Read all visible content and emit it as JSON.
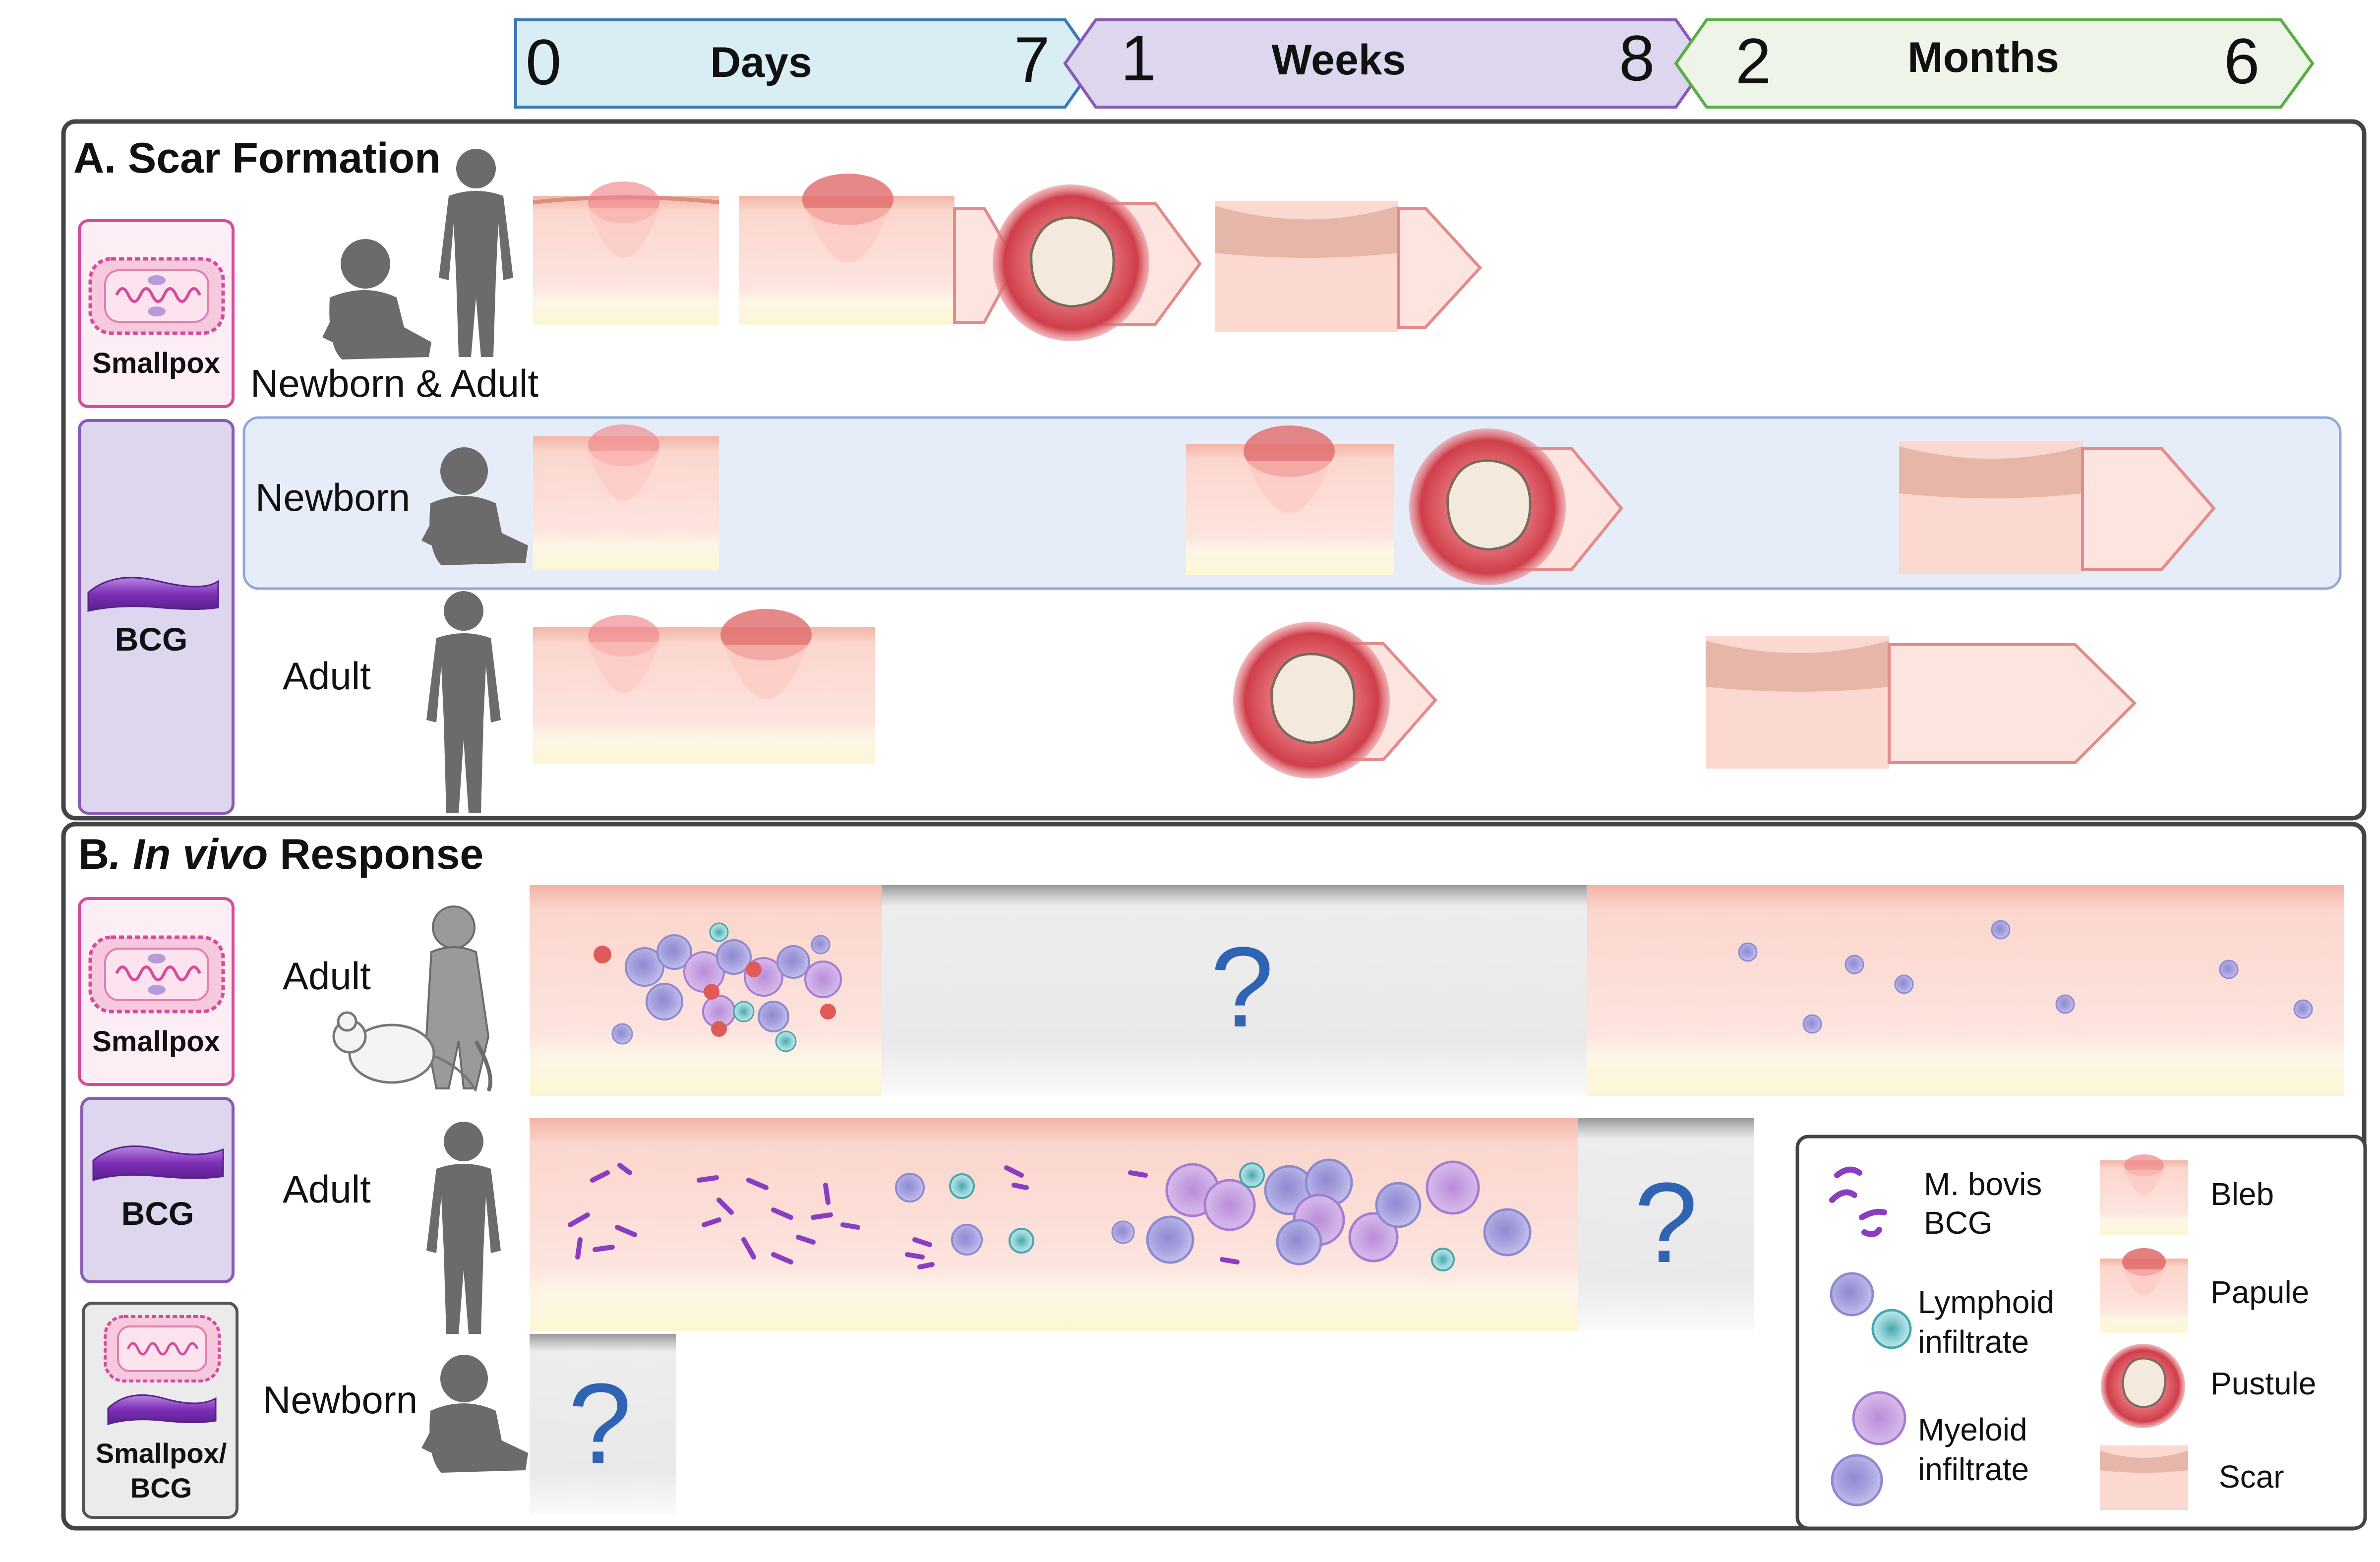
{
  "timeline": {
    "days": {
      "label": "Days",
      "start": "0",
      "end": "7"
    },
    "weeks": {
      "label": "Weeks",
      "start": "1",
      "end": "8"
    },
    "months": {
      "label": "Months",
      "start": "2",
      "end": "6"
    }
  },
  "panel_a": {
    "title": "A. Scar Formation",
    "group_smallpox": "Smallpox",
    "group_bcg": "BCG",
    "row1_label": "Newborn & Adult",
    "row2_label": "Newborn",
    "row3_label": "Adult"
  },
  "panel_b": {
    "title_prefix": "B",
    "title_dot": ". ",
    "title_italic": "In vivo",
    "title_suffix": " Response",
    "group_smallpox": "Smallpox",
    "group_bcg": "BCG",
    "group_combo_1": "Smallpox/",
    "group_combo_2": "BCG",
    "row1_label": "Adult",
    "row2_label": "Adult",
    "row3_label": "Newborn",
    "unknown_mark": "?"
  },
  "legend": {
    "mbovis_1": "M. bovis",
    "mbovis_2": "BCG",
    "lymphoid_1": "Lymphoid",
    "lymphoid_2": "infiltrate",
    "myeloid_1": "Myeloid",
    "myeloid_2": "infiltrate",
    "bleb": "Bleb",
    "papule": "Papule",
    "pustule": "Pustule",
    "scar": "Scar"
  },
  "colors": {
    "days": "#d9eef4",
    "weeks": "#ddd6ee",
    "months": "#eef5e8",
    "panel_border": "#444444",
    "smallpox_border": "#d64b9c",
    "bcg_fill": "#ddd6ee",
    "bcg_border": "#8a5ab4",
    "newborn_row_fill": "#e6edf8",
    "skin": "#fde4df",
    "epidermis": "#f6b9ad",
    "fat": "#fdfbe0",
    "question": "#2f63b3"
  }
}
